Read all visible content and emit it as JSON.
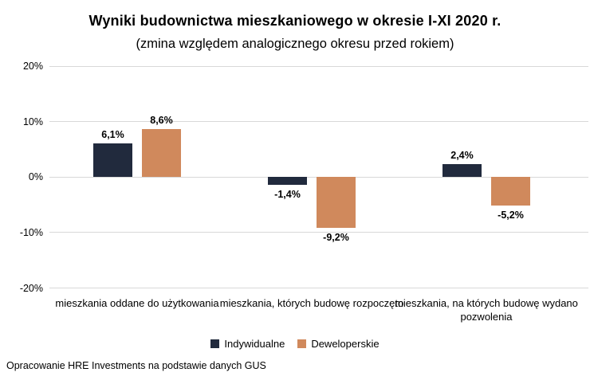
{
  "header": {
    "title": "Wyniki budownictwa mieszkaniowego w okresie I-XI 2020 r.",
    "subtitle": "(zmina względem analogicznego okresu przed rokiem)"
  },
  "footer": {
    "source": "Opracowanie HRE Investments na podstawie danych GUS"
  },
  "colors": {
    "indywidualne": "#212a3d",
    "deweloperskie": "#d0895c",
    "gridline": "#d8d8d8",
    "text": "#000000"
  },
  "chart_data": {
    "type": "bar",
    "title": "Wyniki budownictwa mieszkaniowego w okresie I-XI 2020 r.",
    "subtitle": "(zmina względem analogicznego okresu przed rokiem)",
    "categories": [
      "mieszkania oddane do użytkowania",
      "mieszkania, których budowę rozpoczęto",
      "mieszkania, na których budowę wydano pozwolenia"
    ],
    "series": [
      {
        "name": "Indywidualne",
        "color": "#212a3d",
        "values": [
          6.1,
          -1.4,
          2.4
        ],
        "labels": [
          "6,1%",
          "-1,4%",
          "2,4%"
        ]
      },
      {
        "name": "Deweloperskie",
        "color": "#d0895c",
        "values": [
          8.6,
          -9.2,
          -5.2
        ],
        "labels": [
          "8,6%",
          "-9,2%",
          "-5,2%"
        ]
      }
    ],
    "ylim": [
      -20,
      20
    ],
    "yticks": [
      20,
      10,
      0,
      -10,
      -20
    ],
    "ytick_labels": [
      "20%",
      "10%",
      "0%",
      "-10%",
      "-20%"
    ],
    "grid": true,
    "legend_position": "bottom",
    "value_labels": true,
    "xlabel": "",
    "ylabel": ""
  }
}
